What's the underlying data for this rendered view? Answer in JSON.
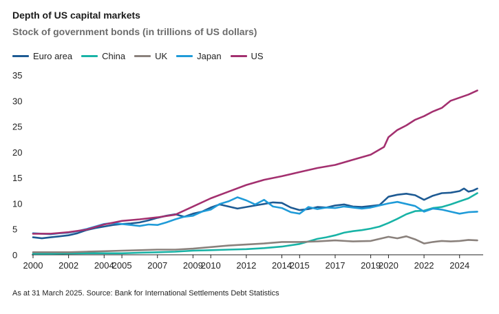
{
  "title": "Depth of US capital markets",
  "subtitle": "Stock of government bonds (in trillions of US dollars)",
  "footnote": "As at 31 March 2025. Source: Bank for International Settlements Debt Statistics",
  "legend": [
    {
      "label": "Euro area",
      "color": "#1d5a93"
    },
    {
      "label": "China",
      "color": "#18b3a6"
    },
    {
      "label": "UK",
      "color": "#8a817c"
    },
    {
      "label": "Japan",
      "color": "#1f9bd8"
    },
    {
      "label": "US",
      "color": "#a3306f"
    }
  ],
  "chart_data": {
    "type": "line",
    "title": "Depth of US capital markets",
    "ylabel": "Stock of government bonds (in trillions of US dollars)",
    "xlabel": "",
    "xlim": [
      2000,
      2025.25
    ],
    "ylim": [
      0,
      35
    ],
    "yticks": [
      0,
      5,
      10,
      15,
      20,
      25,
      30,
      35
    ],
    "xticks": [
      2000,
      2002,
      2004,
      2005,
      2007,
      2009,
      2010,
      2012,
      2014,
      2015,
      2017,
      2019,
      2020,
      2022,
      2024
    ],
    "ytick_labels": [
      "0",
      "5",
      "10",
      "15",
      "20",
      "25",
      "30",
      "35"
    ],
    "xtick_labels": [
      "2000",
      "2002",
      "2004",
      "2005",
      "2007",
      "2009",
      "2010",
      "2012",
      "2014",
      "2015",
      "2017",
      "2019",
      "2020",
      "2022",
      "2024"
    ],
    "grid": false,
    "legend_position": "top-left",
    "series": [
      {
        "name": "Euro area",
        "color": "#1d5a93",
        "x": [
          2000,
          2000.5,
          2001,
          2001.5,
          2002,
          2002.5,
          2003,
          2003.5,
          2004,
          2004.5,
          2005,
          2005.5,
          2006,
          2006.5,
          2007,
          2007.5,
          2008,
          2008.5,
          2009,
          2009.5,
          2010,
          2010.5,
          2011,
          2011.5,
          2012,
          2012.5,
          2013,
          2013.5,
          2014,
          2014.5,
          2015,
          2015.5,
          2016,
          2016.5,
          2017,
          2017.5,
          2018,
          2018.5,
          2019,
          2019.5,
          2020,
          2020.5,
          2021,
          2021.5,
          2022,
          2022.5,
          2023,
          2023.5,
          2024,
          2024.25,
          2024.5,
          2024.75,
          2025
        ],
        "y": [
          3.4,
          3.2,
          3.4,
          3.6,
          3.8,
          4.2,
          4.8,
          5.2,
          5.5,
          5.8,
          6.0,
          6.1,
          6.3,
          6.7,
          7.2,
          7.6,
          7.9,
          7.4,
          8.0,
          8.4,
          9.2,
          9.8,
          9.4,
          9.0,
          9.3,
          9.6,
          9.9,
          10.2,
          10.1,
          9.2,
          8.7,
          8.9,
          9.3,
          9.2,
          9.6,
          9.8,
          9.4,
          9.3,
          9.5,
          9.7,
          11.3,
          11.7,
          11.9,
          11.6,
          10.7,
          11.5,
          12.0,
          12.1,
          12.4,
          12.9,
          12.3,
          12.5,
          12.9
        ]
      },
      {
        "name": "China",
        "color": "#18b3a6",
        "x": [
          2000,
          2001,
          2002,
          2003,
          2004,
          2005,
          2006,
          2007,
          2008,
          2009,
          2010,
          2011,
          2012,
          2013,
          2014,
          2015,
          2015.5,
          2016,
          2016.5,
          2017,
          2017.5,
          2018,
          2018.5,
          2019,
          2019.5,
          2020,
          2020.5,
          2021,
          2021.5,
          2022,
          2022.5,
          2023,
          2023.5,
          2024,
          2024.5,
          2025
        ],
        "y": [
          0.2,
          0.2,
          0.25,
          0.3,
          0.3,
          0.3,
          0.4,
          0.5,
          0.6,
          0.8,
          0.9,
          1.0,
          1.1,
          1.3,
          1.6,
          2.1,
          2.6,
          3.1,
          3.4,
          3.8,
          4.3,
          4.6,
          4.8,
          5.1,
          5.5,
          6.2,
          7.0,
          7.9,
          8.5,
          8.6,
          9.1,
          9.3,
          9.8,
          10.4,
          11.0,
          12.0
        ]
      },
      {
        "name": "UK",
        "color": "#8a817c",
        "x": [
          2000,
          2001,
          2002,
          2003,
          2004,
          2005,
          2006,
          2007,
          2008,
          2009,
          2010,
          2011,
          2012,
          2013,
          2014,
          2015,
          2016,
          2017,
          2018,
          2019,
          2020,
          2020.5,
          2021,
          2021.5,
          2022,
          2022.5,
          2023,
          2023.5,
          2024,
          2024.5,
          2025
        ],
        "y": [
          0.5,
          0.5,
          0.5,
          0.6,
          0.7,
          0.8,
          0.9,
          1.0,
          1.0,
          1.2,
          1.5,
          1.8,
          2.0,
          2.2,
          2.5,
          2.5,
          2.6,
          2.8,
          2.6,
          2.7,
          3.5,
          3.2,
          3.6,
          3.0,
          2.2,
          2.5,
          2.7,
          2.6,
          2.7,
          2.9,
          2.8
        ]
      },
      {
        "name": "Japan",
        "color": "#1f9bd8",
        "x": [
          2000,
          2000.5,
          2001,
          2001.5,
          2002,
          2002.5,
          2003,
          2003.5,
          2004,
          2004.5,
          2005,
          2005.5,
          2006,
          2006.5,
          2007,
          2007.5,
          2008,
          2008.5,
          2009,
          2009.5,
          2010,
          2010.5,
          2011,
          2011.5,
          2012,
          2012.5,
          2013,
          2013.5,
          2014,
          2014.5,
          2015,
          2015.5,
          2016,
          2016.5,
          2017,
          2017.5,
          2018,
          2018.5,
          2019,
          2019.5,
          2020,
          2020.5,
          2021,
          2021.5,
          2022,
          2022.5,
          2023,
          2023.5,
          2024,
          2024.5,
          2025
        ],
        "y": [
          4.2,
          4.1,
          4.0,
          4.2,
          4.3,
          4.6,
          5.0,
          5.5,
          6.0,
          6.2,
          6.0,
          5.8,
          5.6,
          5.9,
          5.8,
          6.3,
          6.9,
          7.4,
          7.6,
          8.4,
          8.8,
          9.9,
          10.4,
          11.2,
          10.6,
          9.8,
          10.7,
          9.4,
          9.1,
          8.3,
          8.0,
          9.3,
          8.9,
          9.2,
          9.1,
          9.4,
          9.2,
          9.0,
          9.2,
          9.6,
          10.0,
          10.3,
          9.9,
          9.5,
          8.4,
          9.0,
          8.8,
          8.4,
          8.0,
          8.3,
          8.4
        ]
      },
      {
        "name": "US",
        "color": "#a3306f",
        "x": [
          2000,
          2001,
          2002,
          2003,
          2004,
          2005,
          2006,
          2007,
          2008,
          2009,
          2010,
          2011,
          2012,
          2013,
          2014,
          2015,
          2016,
          2017,
          2018,
          2019,
          2019.75,
          2020,
          2020.5,
          2021,
          2021.5,
          2022,
          2022.5,
          2023,
          2023.5,
          2024,
          2024.5,
          2025
        ],
        "y": [
          4.1,
          4.1,
          4.4,
          4.9,
          5.9,
          6.6,
          6.9,
          7.3,
          7.8,
          9.4,
          11.0,
          12.3,
          13.6,
          14.6,
          15.3,
          16.1,
          16.9,
          17.5,
          18.5,
          19.5,
          21.0,
          22.9,
          24.3,
          25.2,
          26.3,
          27.0,
          27.9,
          28.6,
          30.0,
          30.6,
          31.2,
          32.0
        ]
      }
    ]
  }
}
